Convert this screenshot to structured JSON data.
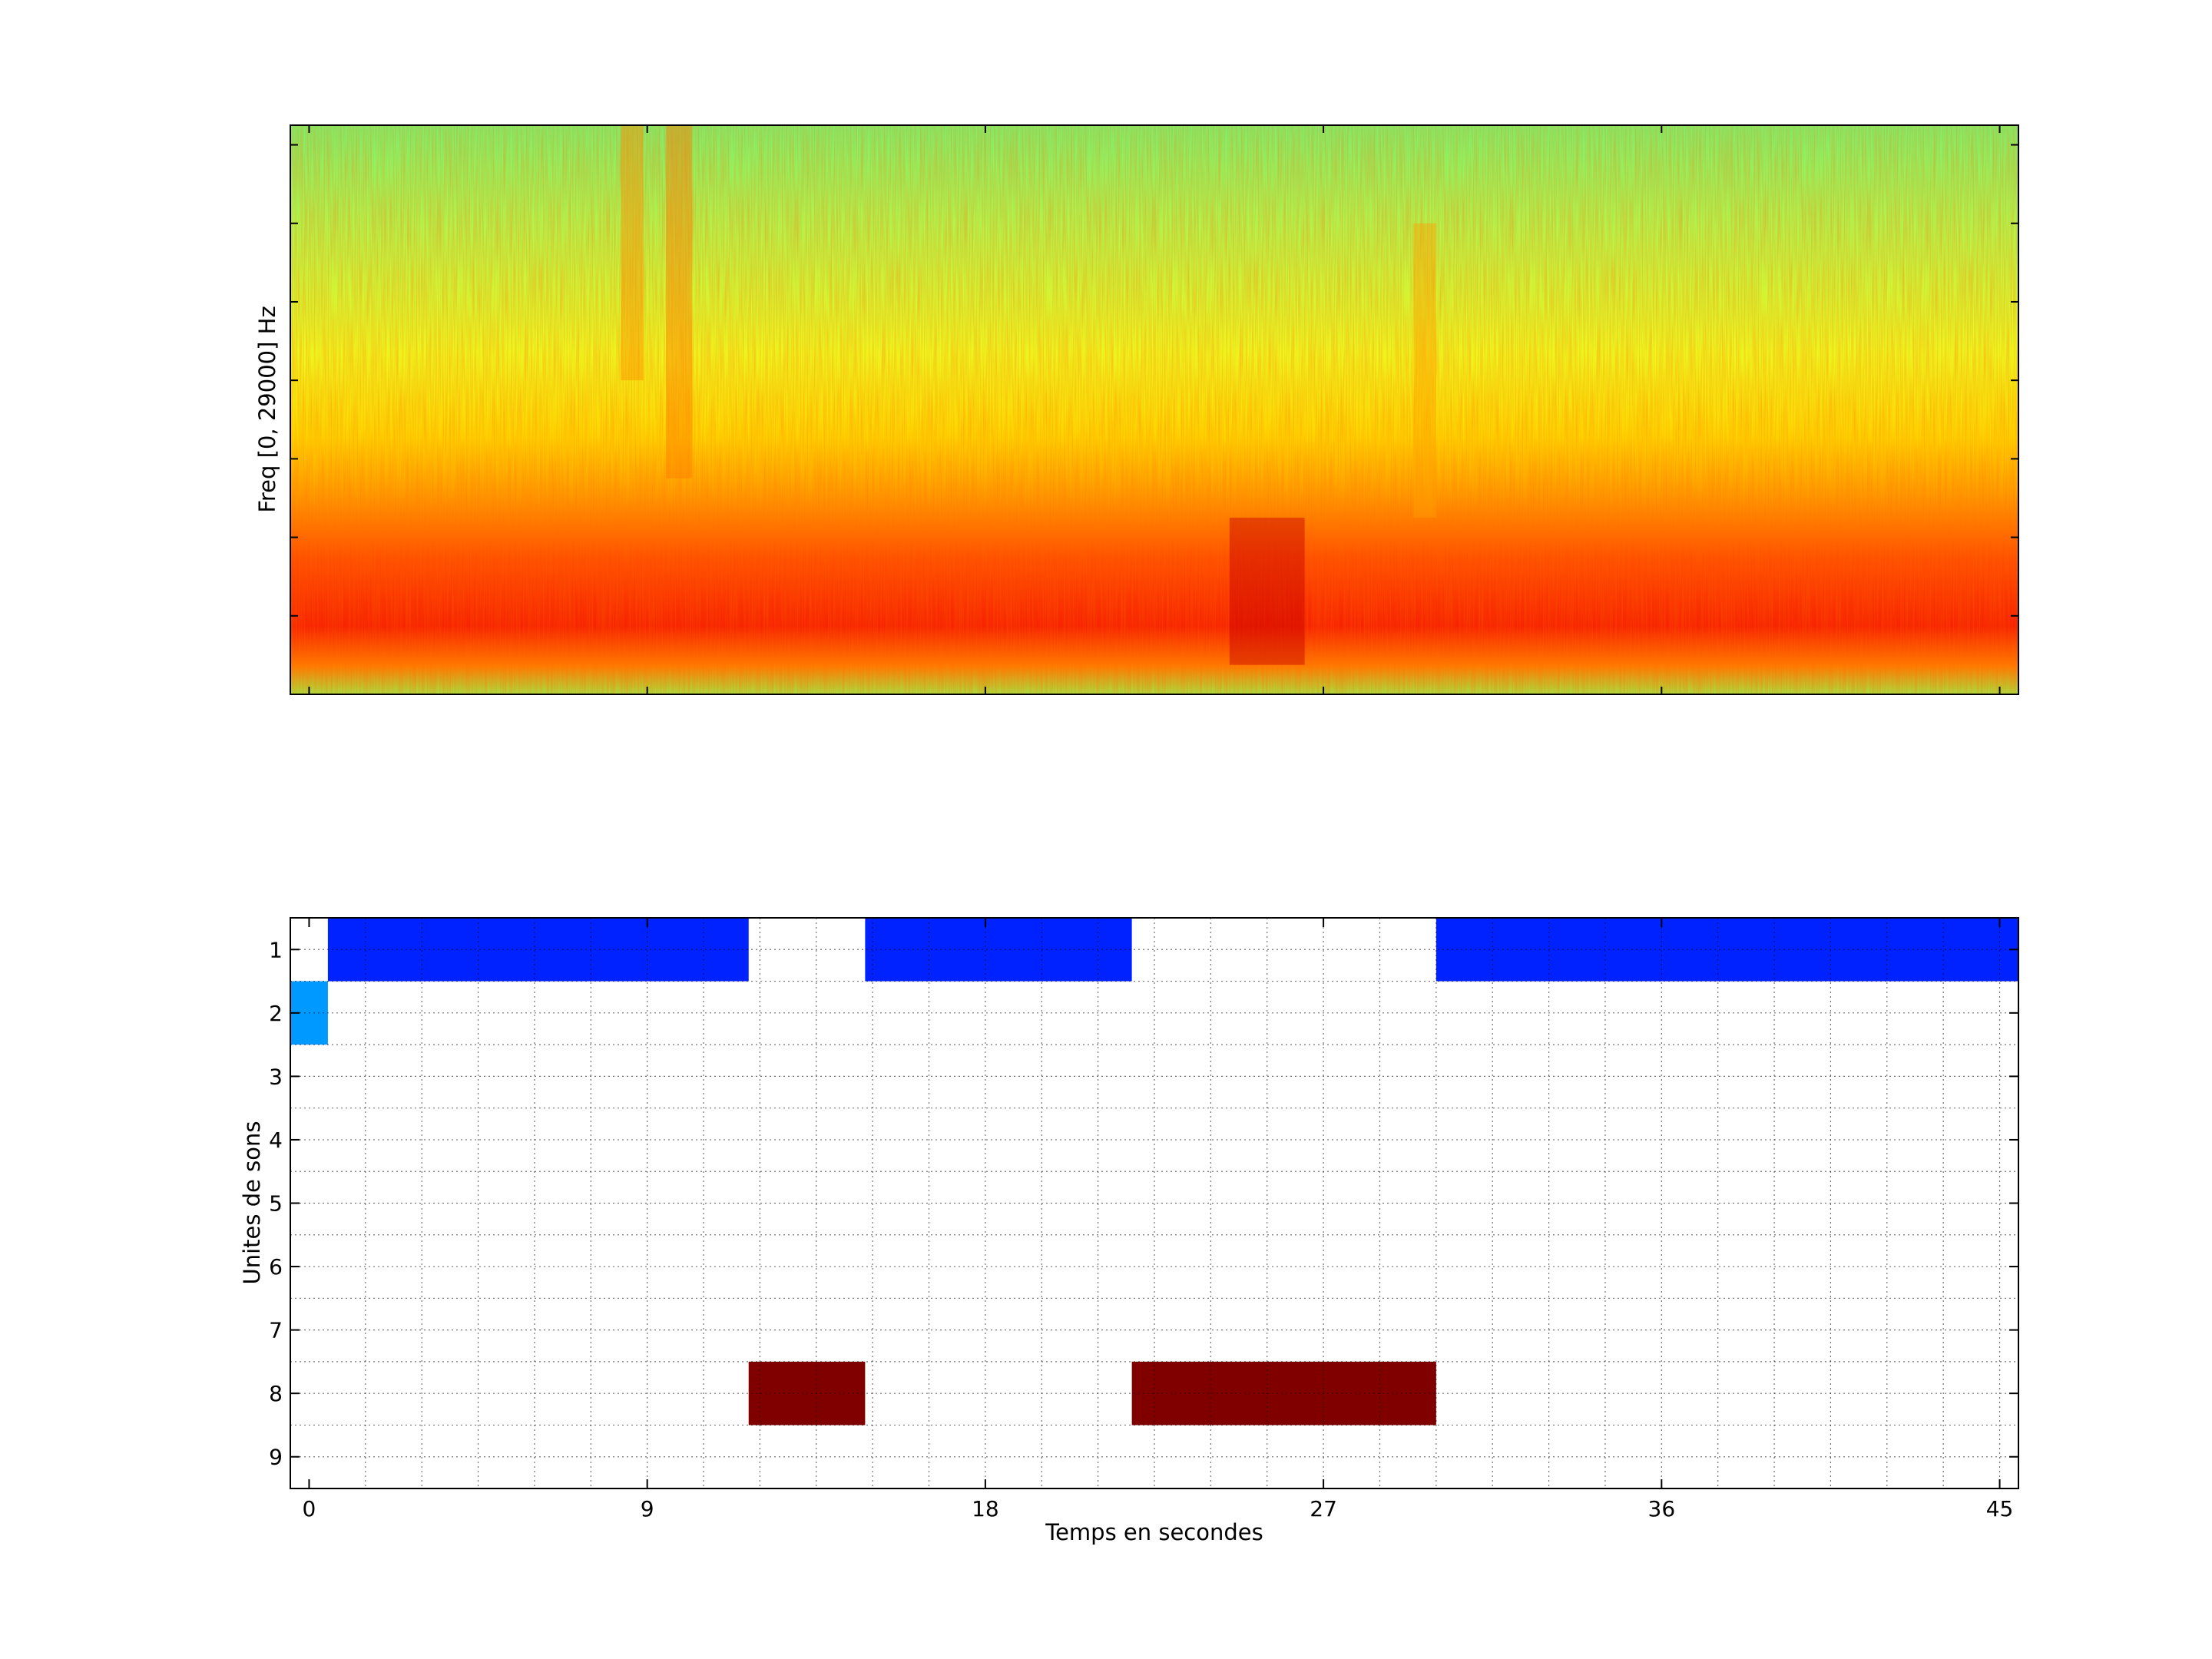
{
  "chart_data": [
    {
      "type": "heatmap",
      "subtype": "spectrogram",
      "title": "",
      "xlabel": "",
      "ylabel": "Freq [0, 29000] Hz",
      "xlim": [
        -0.5,
        45.5
      ],
      "ylim": [
        0,
        29000
      ],
      "x_tick_labels_shown": false,
      "y_tick_labels_shown": false,
      "colormap": "jet",
      "colormap_stops": [
        "#00007f",
        "#0000ff",
        "#00ffff",
        "#ffff00",
        "#ff0000",
        "#7f0000"
      ],
      "description_of_energy": [
        {
          "freq_band_hz": [
            0,
            9000
          ],
          "level": "high"
        },
        {
          "freq_band_hz": [
            9000,
            14000
          ],
          "level": "medium"
        },
        {
          "freq_band_hz": [
            14000,
            29000
          ],
          "level": "low"
        }
      ],
      "notable_events": [
        {
          "time_s": [
            8.3,
            8.9
          ],
          "freq_hz": [
            16000,
            29000
          ],
          "shape": "stacked bursts"
        },
        {
          "time_s": [
            9.5,
            10.2
          ],
          "freq_hz": [
            11000,
            29000
          ],
          "shape": "rippled vertical band"
        },
        {
          "time_s": [
            24.5,
            26.5
          ],
          "freq_hz": [
            1500,
            9000
          ],
          "shape": "dark red patch"
        },
        {
          "time_s": [
            29.4,
            30.0
          ],
          "freq_hz": [
            9000,
            24000
          ],
          "shape": "faint column"
        }
      ]
    },
    {
      "type": "heatmap",
      "subtype": "unit occupancy",
      "title": "",
      "xlabel": "Temps en secondes",
      "ylabel": "Unites de sons",
      "x_ticks": [
        0,
        9,
        18,
        27,
        36,
        45
      ],
      "y_ticks": [
        1,
        2,
        3,
        4,
        5,
        6,
        7,
        8,
        9
      ],
      "xlim": [
        -0.5,
        45.5
      ],
      "ylim": [
        0.5,
        9.5
      ],
      "grid": true,
      "unit_colors": {
        "1": "#0022ff",
        "2": "#0099ff",
        "8": "#800000"
      },
      "segments": [
        {
          "unit": 1,
          "start": 0.5,
          "end": 11.7
        },
        {
          "unit": 1,
          "start": 14.8,
          "end": 21.9
        },
        {
          "unit": 1,
          "start": 30.0,
          "end": 45.5
        },
        {
          "unit": 2,
          "start": -0.5,
          "end": 0.5
        },
        {
          "unit": 8,
          "start": 11.7,
          "end": 14.8
        },
        {
          "unit": 8,
          "start": 21.9,
          "end": 30.0
        }
      ]
    }
  ]
}
